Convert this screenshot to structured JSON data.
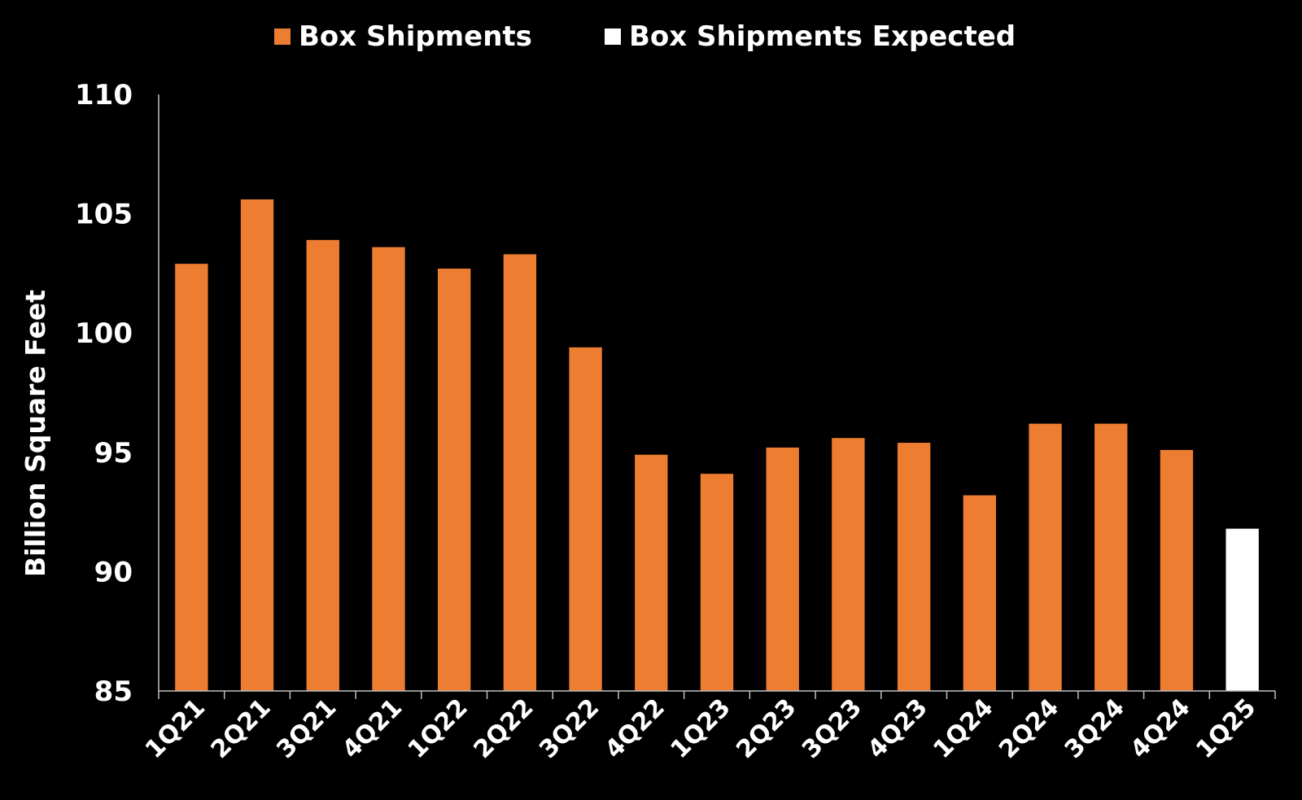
{
  "chart_data": {
    "type": "bar",
    "title": "",
    "xlabel": "",
    "ylabel": "Billion Square Feet",
    "ylim": [
      85,
      110
    ],
    "yticks": [
      85,
      90,
      95,
      100,
      105,
      110
    ],
    "grid": false,
    "legend_position": "top-center",
    "categories": [
      "1Q21",
      "2Q21",
      "3Q21",
      "4Q21",
      "1Q22",
      "2Q22",
      "3Q22",
      "4Q22",
      "1Q23",
      "2Q23",
      "3Q23",
      "4Q23",
      "1Q24",
      "2Q24",
      "3Q24",
      "4Q24",
      "1Q25"
    ],
    "series": [
      {
        "name": "Box Shipments",
        "color": "#ED7D31",
        "values": [
          102.9,
          105.6,
          103.9,
          103.6,
          102.7,
          103.3,
          99.4,
          94.9,
          94.1,
          95.2,
          95.6,
          95.4,
          93.2,
          96.2,
          96.2,
          95.1,
          null
        ]
      },
      {
        "name": "Box Shipments Expected",
        "color": "#FFFFFF",
        "values": [
          null,
          null,
          null,
          null,
          null,
          null,
          null,
          null,
          null,
          null,
          null,
          null,
          null,
          null,
          null,
          null,
          91.8
        ]
      }
    ]
  },
  "colors": {
    "background": "#000000",
    "text": "#FFFFFF",
    "axis": "#BFBFBF"
  }
}
